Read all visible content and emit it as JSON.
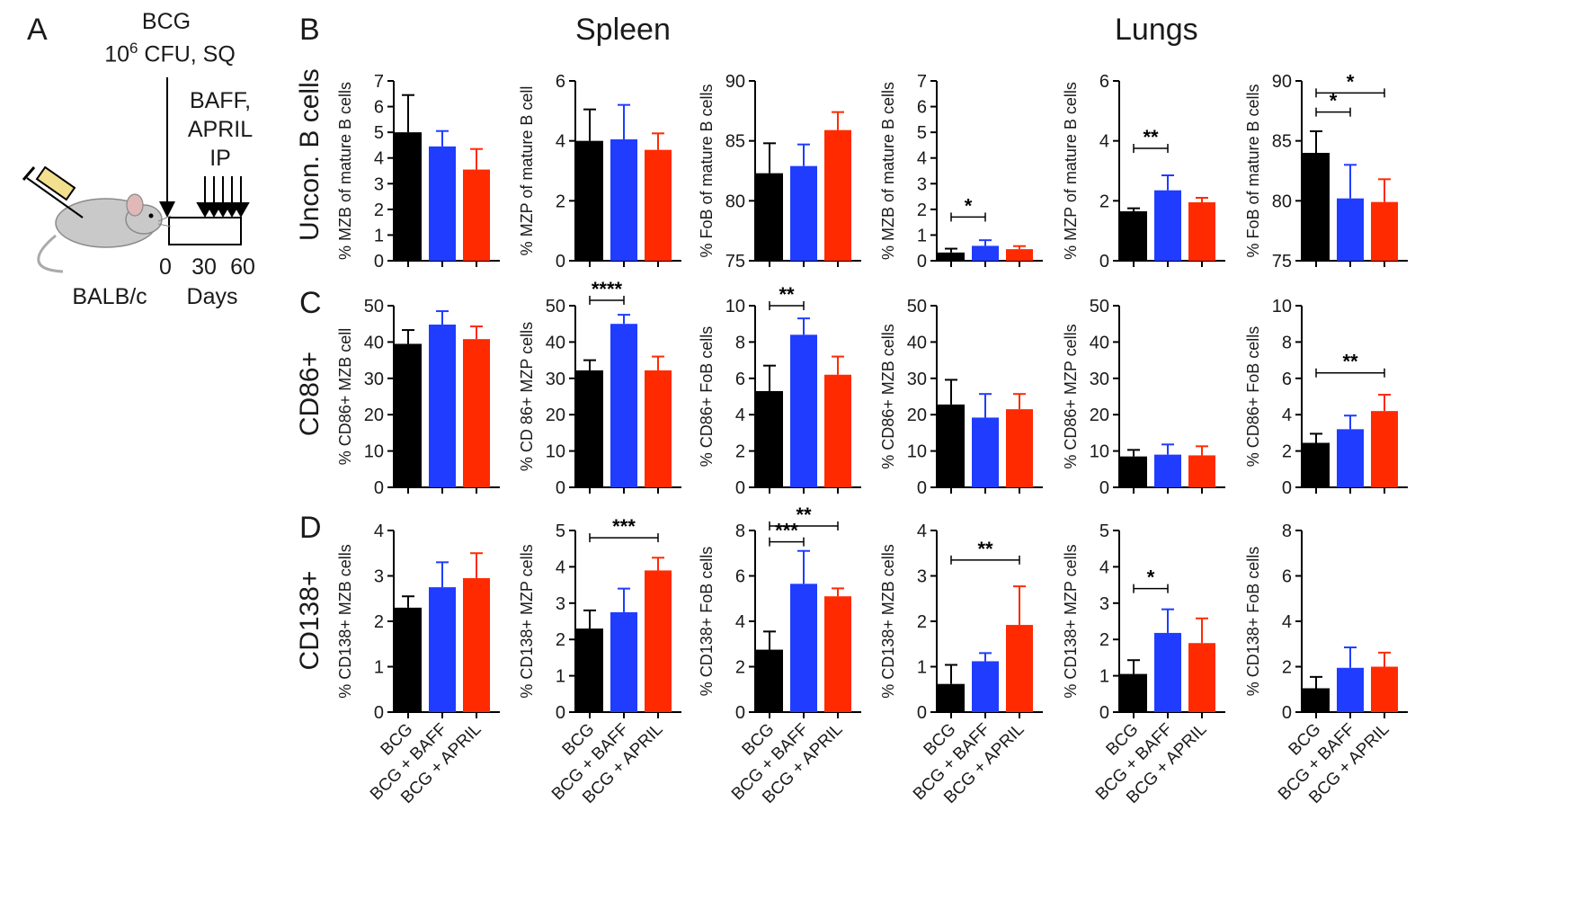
{
  "schematic": {
    "letter": "A",
    "bcg_line1": "BCG",
    "bcg_dose": "10",
    "bcg_sup": "6",
    "bcg_line2_rest": " CFU, SQ",
    "treat": [
      "BAFF,",
      "APRIL",
      "IP"
    ],
    "strain": "BALB/c",
    "days_label": "Days",
    "day_ticks": [
      "0",
      "30",
      "60"
    ]
  },
  "panels": {
    "B": "B",
    "C": "C",
    "D": "D"
  },
  "tissues": {
    "spleen": "Spleen",
    "lungs": "Lungs"
  },
  "row_labels": [
    "Uncon. B cells",
    "CD86+",
    "CD138+"
  ],
  "groups": [
    "BCG",
    "BCG + BAFF",
    "BCG + APRIL"
  ],
  "colors": {
    "BCG": "#000000",
    "BCG + BAFF": "#1f3cff",
    "BCG + APRIL": "#ff2a00"
  },
  "chart_data": [
    {
      "type": "bar",
      "row": 0,
      "col": 0,
      "ylabel": "% MZB of mature B cells",
      "ylim": [
        0,
        7
      ],
      "ticks": [
        0,
        1,
        2,
        3,
        4,
        5,
        6,
        7
      ],
      "values": [
        5.0,
        4.45,
        3.55
      ],
      "errors": [
        1.45,
        0.6,
        0.8
      ],
      "sig": []
    },
    {
      "type": "bar",
      "row": 0,
      "col": 1,
      "ylabel": "% MZP of mature B cell",
      "ylim": [
        0,
        6
      ],
      "ticks": [
        0,
        2,
        4,
        6
      ],
      "values": [
        4.0,
        4.05,
        3.7
      ],
      "errors": [
        1.05,
        1.15,
        0.55
      ],
      "sig": []
    },
    {
      "type": "bar",
      "row": 0,
      "col": 2,
      "ylabel": "% FoB of mature B cells",
      "ylim": [
        75,
        90
      ],
      "ticks": [
        75,
        80,
        85,
        90
      ],
      "values": [
        82.3,
        82.9,
        85.9
      ],
      "errors": [
        2.5,
        1.8,
        1.5
      ],
      "sig": []
    },
    {
      "type": "bar",
      "row": 0,
      "col": 3,
      "ylabel": "% MZB of mature B cells",
      "ylim": [
        0,
        7
      ],
      "ticks": [
        0,
        1,
        2,
        3,
        4,
        5,
        6,
        7
      ],
      "values": [
        0.32,
        0.58,
        0.45
      ],
      "errors": [
        0.15,
        0.22,
        0.12
      ],
      "sig": [
        {
          "from": 0,
          "to": 1,
          "label": "*",
          "y": 1.7
        }
      ]
    },
    {
      "type": "bar",
      "row": 0,
      "col": 4,
      "ylabel": "% MZP of mature B cells",
      "ylim": [
        0,
        6
      ],
      "ticks": [
        0,
        2,
        4,
        6
      ],
      "values": [
        1.65,
        2.35,
        1.95
      ],
      "errors": [
        0.1,
        0.5,
        0.15
      ],
      "sig": [
        {
          "from": 0,
          "to": 1,
          "label": "**",
          "y": 3.75
        }
      ]
    },
    {
      "type": "bar",
      "row": 0,
      "col": 5,
      "ylabel": "% FoB of mature B cells",
      "ylim": [
        75,
        90
      ],
      "ticks": [
        75,
        80,
        85,
        90
      ],
      "values": [
        84.0,
        80.2,
        79.9
      ],
      "errors": [
        1.8,
        2.8,
        1.9
      ],
      "sig": [
        {
          "from": 0,
          "to": 1,
          "label": "*",
          "y": 87.4
        },
        {
          "from": 0,
          "to": 2,
          "label": "*",
          "y": 89.0
        }
      ]
    },
    {
      "type": "bar",
      "row": 1,
      "col": 0,
      "ylabel": "% CD86+ MZB cell",
      "ylim": [
        0,
        50
      ],
      "ticks": [
        0,
        10,
        20,
        30,
        40,
        50
      ],
      "values": [
        39.5,
        44.8,
        40.8
      ],
      "errors": [
        3.8,
        3.7,
        3.5
      ],
      "sig": []
    },
    {
      "type": "bar",
      "row": 1,
      "col": 1,
      "ylabel": "% CD 86+ MZP cells",
      "ylim": [
        0,
        50
      ],
      "ticks": [
        0,
        10,
        20,
        30,
        40,
        50
      ],
      "values": [
        32.2,
        45.0,
        32.2
      ],
      "errors": [
        2.8,
        2.5,
        3.8
      ],
      "sig": [
        {
          "from": 0,
          "to": 1,
          "label": "****",
          "y": 51.5
        }
      ]
    },
    {
      "type": "bar",
      "row": 1,
      "col": 2,
      "ylabel": "% CD86+ FoB cells",
      "ylim": [
        0,
        10
      ],
      "ticks": [
        0,
        2,
        4,
        6,
        8,
        10
      ],
      "values": [
        5.3,
        8.4,
        6.2
      ],
      "errors": [
        1.4,
        0.9,
        1.0
      ],
      "sig": [
        {
          "from": 0,
          "to": 1,
          "label": "**",
          "y": 10.0
        }
      ]
    },
    {
      "type": "bar",
      "row": 1,
      "col": 3,
      "ylabel": "% CD86+ MZB cells",
      "ylim": [
        0,
        50
      ],
      "ticks": [
        0,
        10,
        20,
        30,
        40,
        50
      ],
      "values": [
        22.8,
        19.2,
        21.5
      ],
      "errors": [
        6.8,
        6.5,
        4.2
      ],
      "sig": []
    },
    {
      "type": "bar",
      "row": 1,
      "col": 4,
      "ylabel": "% CD86+ MZP cells",
      "ylim": [
        0,
        50
      ],
      "ticks": [
        0,
        10,
        20,
        30,
        40,
        50
      ],
      "values": [
        8.5,
        9.0,
        8.8
      ],
      "errors": [
        1.8,
        2.8,
        2.5
      ],
      "sig": []
    },
    {
      "type": "bar",
      "row": 1,
      "col": 5,
      "ylabel": "% CD86+ FoB cells",
      "ylim": [
        0,
        10
      ],
      "ticks": [
        0,
        2,
        4,
        6,
        8,
        10
      ],
      "values": [
        2.45,
        3.2,
        4.2
      ],
      "errors": [
        0.5,
        0.75,
        0.9
      ],
      "sig": [
        {
          "from": 0,
          "to": 2,
          "label": "**",
          "y": 6.3
        }
      ]
    },
    {
      "type": "bar",
      "row": 2,
      "col": 0,
      "ylabel": "% CD138+ MZB cells",
      "ylim": [
        0,
        4
      ],
      "ticks": [
        0,
        1,
        2,
        3,
        4
      ],
      "values": [
        2.3,
        2.75,
        2.95
      ],
      "errors": [
        0.25,
        0.55,
        0.55
      ],
      "sig": []
    },
    {
      "type": "bar",
      "row": 2,
      "col": 1,
      "ylabel": "% CD138+ MZP cells",
      "ylim": [
        0,
        5
      ],
      "ticks": [
        0,
        1,
        2,
        3,
        4,
        5
      ],
      "values": [
        2.3,
        2.75,
        3.9
      ],
      "errors": [
        0.5,
        0.65,
        0.35
      ],
      "sig": [
        {
          "from": 0,
          "to": 2,
          "label": "***",
          "y": 4.8
        }
      ]
    },
    {
      "type": "bar",
      "row": 2,
      "col": 2,
      "ylabel": "% CD138+ FoB cells",
      "ylim": [
        0,
        8
      ],
      "ticks": [
        0,
        2,
        4,
        6,
        8
      ],
      "values": [
        2.75,
        5.65,
        5.1
      ],
      "errors": [
        0.8,
        1.45,
        0.35
      ],
      "sig": [
        {
          "from": 0,
          "to": 1,
          "label": "***",
          "y": 7.5
        },
        {
          "from": 0,
          "to": 2,
          "label": "**",
          "y": 8.2
        }
      ]
    },
    {
      "type": "bar",
      "row": 2,
      "col": 3,
      "ylabel": "% CD138+ MZB cells",
      "ylim": [
        0,
        4
      ],
      "ticks": [
        0,
        1,
        2,
        3,
        4
      ],
      "values": [
        0.62,
        1.12,
        1.92
      ],
      "errors": [
        0.42,
        0.18,
        0.85
      ],
      "sig": [
        {
          "from": 0,
          "to": 2,
          "label": "**",
          "y": 3.35
        }
      ]
    },
    {
      "type": "bar",
      "row": 2,
      "col": 4,
      "ylabel": "% CD138+ MZP cells",
      "ylim": [
        0,
        5
      ],
      "ticks": [
        0,
        1,
        2,
        3,
        4,
        5
      ],
      "values": [
        1.05,
        2.18,
        1.9
      ],
      "errors": [
        0.38,
        0.65,
        0.68
      ],
      "sig": [
        {
          "from": 0,
          "to": 1,
          "label": "*",
          "y": 3.4
        }
      ]
    },
    {
      "type": "bar",
      "row": 2,
      "col": 5,
      "ylabel": "% CD138+ FoB cells",
      "ylim": [
        0,
        8
      ],
      "ticks": [
        0,
        2,
        4,
        6,
        8
      ],
      "values": [
        1.05,
        1.95,
        2.0
      ],
      "errors": [
        0.5,
        0.9,
        0.62
      ],
      "sig": []
    }
  ]
}
